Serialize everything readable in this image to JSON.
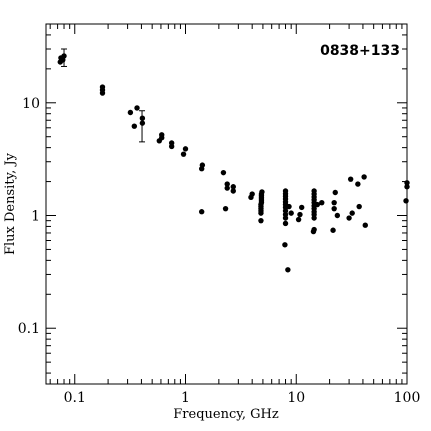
{
  "chart_data": {
    "type": "scatter",
    "title": "0838+133",
    "xlabel": "Frequency, GHz",
    "ylabel": "Flux Density, Jy",
    "x_scale": "log",
    "y_scale": "log",
    "xlim": [
      0.055,
      100
    ],
    "ylim": [
      0.032,
      50
    ],
    "x_ticks": [
      {
        "value": 0.1,
        "label": "0.1"
      },
      {
        "value": 1,
        "label": "1"
      },
      {
        "value": 10,
        "label": "10"
      },
      {
        "value": 100,
        "label": "100"
      }
    ],
    "y_ticks": [
      {
        "value": 0.1,
        "label": "0.1"
      },
      {
        "value": 1,
        "label": "1"
      },
      {
        "value": 10,
        "label": "10"
      }
    ],
    "grid": false,
    "legend": "none",
    "marker_color": "#000000",
    "points": [
      [
        0.074,
        23
      ],
      [
        0.075,
        25
      ],
      [
        0.078,
        24
      ],
      [
        0.08,
        26
      ],
      [
        0.178,
        12.2
      ],
      [
        0.178,
        13.0
      ],
      [
        0.178,
        13.8
      ],
      [
        0.318,
        8.2
      ],
      [
        0.345,
        6.2
      ],
      [
        0.365,
        9.0
      ],
      [
        0.408,
        6.6
      ],
      [
        0.408,
        7.3
      ],
      [
        0.58,
        4.6
      ],
      [
        0.61,
        5.2
      ],
      [
        0.61,
        4.9
      ],
      [
        0.75,
        4.1
      ],
      [
        0.75,
        4.4
      ],
      [
        0.96,
        3.5
      ],
      [
        1.0,
        3.9
      ],
      [
        1.4,
        1.08
      ],
      [
        1.4,
        2.6
      ],
      [
        1.42,
        2.8
      ],
      [
        2.2,
        2.4
      ],
      [
        2.3,
        1.15
      ],
      [
        2.38,
        1.9
      ],
      [
        2.38,
        1.75
      ],
      [
        2.7,
        1.8
      ],
      [
        2.7,
        1.65
      ],
      [
        3.9,
        1.45
      ],
      [
        4.0,
        1.55
      ],
      [
        4.8,
        0.9
      ],
      [
        4.8,
        1.05
      ],
      [
        4.8,
        1.1
      ],
      [
        4.8,
        1.15
      ],
      [
        4.8,
        1.2
      ],
      [
        4.8,
        1.25
      ],
      [
        4.85,
        1.3
      ],
      [
        4.85,
        1.35
      ],
      [
        4.85,
        1.4
      ],
      [
        4.85,
        1.45
      ],
      [
        4.85,
        1.5
      ],
      [
        4.85,
        1.55
      ],
      [
        4.9,
        1.62
      ],
      [
        7.9,
        0.55
      ],
      [
        8.0,
        0.85
      ],
      [
        8.0,
        0.95
      ],
      [
        8.0,
        1.02
      ],
      [
        8.0,
        1.1
      ],
      [
        8.0,
        1.18
      ],
      [
        8.0,
        1.25
      ],
      [
        8.0,
        1.32
      ],
      [
        8.0,
        1.4
      ],
      [
        8.0,
        1.48
      ],
      [
        8.0,
        1.56
      ],
      [
        8.0,
        1.65
      ],
      [
        8.4,
        0.33
      ],
      [
        8.6,
        1.2
      ],
      [
        9.0,
        1.05
      ],
      [
        10.5,
        0.92
      ],
      [
        10.8,
        1.02
      ],
      [
        11.2,
        1.18
      ],
      [
        14.3,
        0.72
      ],
      [
        14.5,
        0.75
      ],
      [
        14.5,
        0.95
      ],
      [
        14.5,
        1.02
      ],
      [
        14.5,
        1.08
      ],
      [
        14.5,
        1.15
      ],
      [
        14.5,
        1.22
      ],
      [
        14.5,
        1.3
      ],
      [
        14.5,
        1.38
      ],
      [
        14.5,
        1.46
      ],
      [
        14.5,
        1.55
      ],
      [
        14.5,
        1.65
      ],
      [
        15.5,
        1.25
      ],
      [
        17.0,
        1.3
      ],
      [
        21.5,
        0.74
      ],
      [
        22.0,
        1.15
      ],
      [
        22.0,
        1.3
      ],
      [
        22.5,
        1.6
      ],
      [
        23.5,
        1.0
      ],
      [
        30.0,
        0.95
      ],
      [
        31.0,
        2.1
      ],
      [
        32.0,
        1.05
      ],
      [
        36.0,
        1.9
      ],
      [
        37.0,
        1.2
      ],
      [
        41.0,
        2.2
      ],
      [
        42.0,
        0.82
      ],
      [
        98.0,
        1.35
      ],
      [
        100.0,
        1.8
      ],
      [
        100.0,
        1.95
      ]
    ],
    "error_bars": [
      {
        "x": 0.08,
        "y": 25.5,
        "low": 21,
        "high": 30
      },
      {
        "x": 0.405,
        "y": 6.4,
        "low": 4.5,
        "high": 8.5
      }
    ]
  }
}
